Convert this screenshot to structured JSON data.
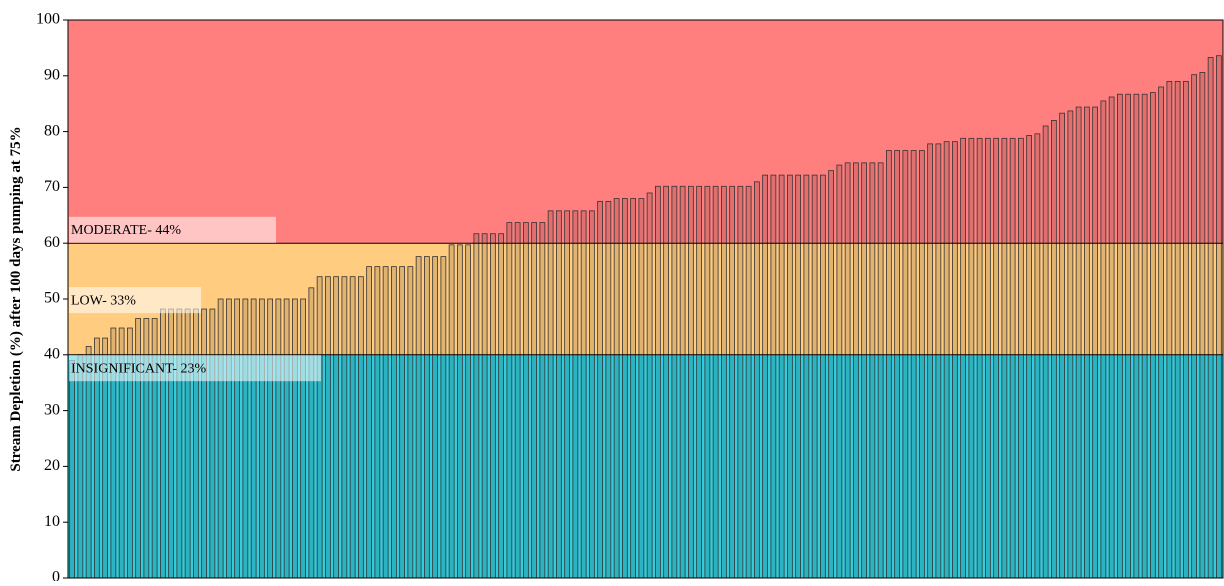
{
  "chart_data": {
    "type": "bar",
    "y_label": "Stream Depletion (%) after 100 days pumping at 75%",
    "ylim": [
      0,
      100
    ],
    "yticks": [
      0,
      10,
      20,
      30,
      40,
      50,
      60,
      70,
      80,
      90,
      100
    ],
    "bands": [
      {
        "label": "INSIGNIFICANT- 23%",
        "from": 0,
        "to": 40,
        "color": "#33ccdd"
      },
      {
        "label": "LOW- 33%",
        "from": 40,
        "to": 60,
        "color": "#ffcc80"
      },
      {
        "label": "MODERATE- 44%",
        "from": 60,
        "to": 100,
        "color": "#ff7f7f"
      }
    ],
    "bar_color": "#333333",
    "values": [
      39,
      40,
      41.5,
      43,
      43,
      44.8,
      44.8,
      44.8,
      46.5,
      46.5,
      46.5,
      48.2,
      48.2,
      48.2,
      48.2,
      48.2,
      48.2,
      48.2,
      50,
      50,
      50,
      50,
      50,
      50,
      50,
      50,
      50,
      50,
      50,
      52,
      54,
      54,
      54,
      54,
      54,
      54,
      55.8,
      55.8,
      55.8,
      55.8,
      55.8,
      55.8,
      57.6,
      57.6,
      57.6,
      57.6,
      59.7,
      59.7,
      59.7,
      61.7,
      61.7,
      61.7,
      61.7,
      63.7,
      63.7,
      63.7,
      63.7,
      63.7,
      65.8,
      65.8,
      65.8,
      65.8,
      65.8,
      65.8,
      67.5,
      67.5,
      68,
      68,
      68,
      68,
      69,
      70.2,
      70.2,
      70.2,
      70.2,
      70.2,
      70.2,
      70.2,
      70.2,
      70.2,
      70.2,
      70.2,
      70.2,
      71,
      72.2,
      72.2,
      72.2,
      72.2,
      72.2,
      72.2,
      72.2,
      72.2,
      73,
      74,
      74.4,
      74.4,
      74.4,
      74.4,
      74.4,
      76.6,
      76.6,
      76.6,
      76.6,
      76.6,
      77.8,
      77.8,
      78.2,
      78.2,
      78.8,
      78.8,
      78.8,
      78.8,
      78.8,
      78.8,
      78.8,
      78.8,
      79.3,
      79.6,
      81,
      82,
      83.3,
      83.7,
      84.4,
      84.4,
      84.4,
      85.5,
      86.2,
      86.7,
      86.7,
      86.7,
      86.7,
      87,
      88,
      89,
      89,
      89,
      90.2,
      90.6,
      93.3,
      93.6
    ]
  }
}
